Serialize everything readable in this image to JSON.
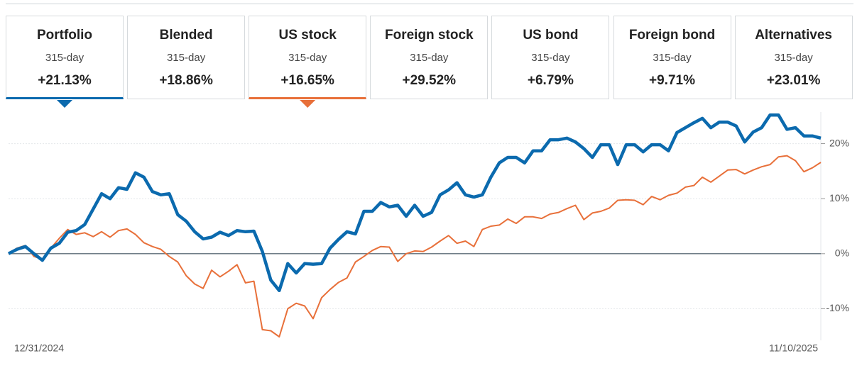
{
  "tabs": [
    {
      "label": "Portfolio",
      "period": "315-day",
      "value": "+21.13%"
    },
    {
      "label": "Blended",
      "period": "315-day",
      "value": "+18.86%"
    },
    {
      "label": "US stock",
      "period": "315-day",
      "value": "+16.65%"
    },
    {
      "label": "Foreign stock",
      "period": "315-day",
      "value": "+29.52%"
    },
    {
      "label": "US bond",
      "period": "315-day",
      "value": "+6.79%"
    },
    {
      "label": "Foreign bond",
      "period": "315-day",
      "value": "+9.71%"
    },
    {
      "label": "Alternatives",
      "period": "315-day",
      "value": "+23.01%"
    }
  ],
  "chart_data": {
    "type": "line",
    "categories": [
      "12/31/2024",
      null,
      null,
      null,
      null,
      null,
      null,
      null,
      null,
      null,
      null,
      null,
      null,
      null,
      null,
      null,
      null,
      null,
      null,
      null,
      null,
      null,
      null,
      null,
      null,
      null,
      null,
      null,
      null,
      null,
      null,
      null,
      null,
      null,
      null,
      null,
      null,
      null,
      null,
      null,
      null,
      null,
      null,
      null,
      null,
      null,
      null,
      null,
      null,
      null,
      null,
      null,
      null,
      null,
      null,
      null,
      null,
      null,
      null,
      null,
      null,
      null,
      null,
      null,
      null,
      null,
      null,
      null,
      null,
      null,
      null,
      null,
      null,
      null,
      null,
      null,
      null,
      null,
      null,
      null,
      null,
      null,
      null,
      null,
      null,
      null,
      null,
      null,
      null,
      null,
      null,
      null,
      null,
      null,
      null,
      null,
      "11/10/2025"
    ],
    "series": [
      {
        "color": "#0b6aae",
        "values": [
          0,
          0.8,
          1.3,
          0,
          -1.2,
          1,
          1.9,
          3.9,
          4.2,
          5.3,
          8.1,
          10.9,
          10,
          12,
          11.7,
          14.7,
          13.9,
          11.3,
          10.7,
          10.9,
          7.1,
          5.9,
          4,
          2.7,
          3,
          3.9,
          3.3,
          4.2,
          4,
          4.1,
          0.4,
          -4.8,
          -6.7,
          -1.8,
          -3.5,
          -1.8,
          -1.9,
          -1.8,
          1,
          2.6,
          4,
          3.6,
          7.7,
          7.7,
          9.3,
          8.5,
          8.8,
          6.8,
          8.8,
          6.8,
          7.5,
          10.7,
          11.6,
          12.9,
          10.7,
          10.3,
          10.7,
          13.9,
          16.5,
          17.5,
          17.5,
          16.5,
          18.7,
          18.7,
          20.7,
          20.7,
          21,
          20.3,
          19.1,
          17.5,
          19.8,
          19.8,
          16.2,
          19.8,
          19.8,
          18.5,
          19.8,
          19.8,
          18.7,
          22,
          22.9,
          23.8,
          24.6,
          22.9,
          23.9,
          23.9,
          23.2,
          20.3,
          22.1,
          22.9,
          25.2,
          25.2,
          22.6,
          22.9,
          21.4,
          21.4,
          21
        ]
      },
      {
        "color": "#e8703a",
        "values": [
          0,
          1,
          1.5,
          -0.5,
          -1,
          1,
          2.8,
          4.4,
          3.5,
          3.8,
          3.1,
          4,
          3,
          4.2,
          4.5,
          3.5,
          2,
          1.3,
          0.8,
          -0.5,
          -1.5,
          -4,
          -5.5,
          -6.3,
          -3,
          -4.2,
          -3.2,
          -2,
          -5.3,
          -5,
          -13.8,
          -14,
          -15.1,
          -10,
          -9,
          -9.5,
          -11.8,
          -8,
          -6.5,
          -5.2,
          -4.4,
          -1.5,
          -0.5,
          0.6,
          1.3,
          1.2,
          -1.4,
          0,
          0.5,
          0.4,
          1.2,
          2.3,
          3.3,
          1.9,
          2.3,
          1.3,
          4.4,
          5,
          5.2,
          6.3,
          5.5,
          6.7,
          6.7,
          6.4,
          7.2,
          7.5,
          8.2,
          8.8,
          6.2,
          7.4,
          7.7,
          8.3,
          9.7,
          9.8,
          9.7,
          8.9,
          10.4,
          9.8,
          10.6,
          11,
          12.1,
          12.4,
          13.9,
          13,
          14.1,
          15.2,
          15.3,
          14.5,
          15.2,
          15.8,
          16.2,
          17.6,
          17.8,
          16.9,
          14.9,
          15.6,
          16.6
        ]
      }
    ],
    "ylim": [
      -16,
      26
    ],
    "yticks": [
      {
        "value": -10,
        "label": "-10%"
      },
      {
        "value": 0,
        "label": "0%"
      },
      {
        "value": 10,
        "label": "10%"
      },
      {
        "value": 20,
        "label": "20%"
      }
    ],
    "grid": true
  }
}
